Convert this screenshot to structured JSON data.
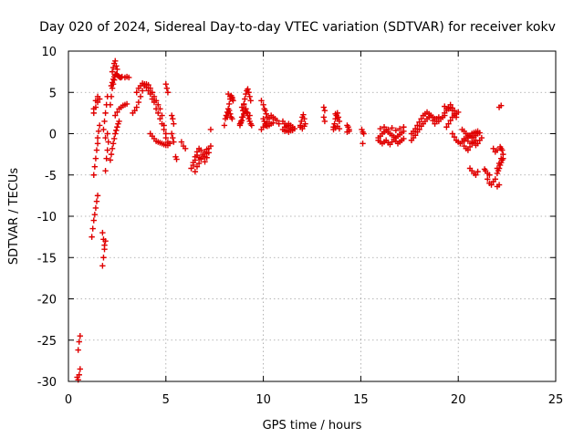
{
  "chart_data": {
    "type": "scatter",
    "title": "Day 020 of 2024, Sidereal Day-to-day VTEC variation (SDTVAR) for receiver kokv",
    "xlabel": "GPS time / hours",
    "ylabel": "SDTVAR / TECUs",
    "xlim": [
      0,
      25
    ],
    "ylim": [
      -30,
      10
    ],
    "xticks": [
      0,
      5,
      10,
      15,
      20,
      25
    ],
    "yticks": [
      10,
      5,
      0,
      -5,
      -10,
      -15,
      -20,
      -25,
      -30
    ],
    "grid": true,
    "marker": "+",
    "color": "#e00000",
    "series": [
      {
        "name": "SDTVAR",
        "x": [
          0.45,
          0.5,
          0.55,
          0.6,
          0.5,
          0.55,
          0.6,
          1.2,
          1.25,
          1.3,
          1.35,
          1.4,
          1.45,
          1.5,
          1.3,
          1.35,
          1.4,
          1.45,
          1.5,
          1.5,
          1.55,
          1.6,
          1.3,
          1.4,
          1.5,
          1.3,
          1.4,
          1.5,
          1.6,
          1.75,
          1.8,
          1.85,
          1.9,
          1.75,
          1.8,
          1.85,
          1.9,
          1.95,
          2.0,
          2.05,
          1.8,
          1.85,
          1.9,
          1.95,
          2.0,
          1.9,
          2.0,
          2.15,
          2.2,
          2.25,
          2.3,
          2.35,
          2.4,
          2.45,
          2.5,
          2.55,
          2.6,
          2.15,
          2.2,
          2.25,
          2.3,
          2.35,
          2.2,
          2.25,
          2.3,
          2.35,
          2.4,
          2.45,
          2.5,
          2.55,
          2.6,
          2.65,
          2.7,
          2.75,
          2.25,
          2.3,
          2.35,
          2.4,
          2.45,
          2.5,
          2.4,
          2.5,
          2.6,
          2.7,
          2.8,
          2.9,
          3.0,
          2.9,
          3.0,
          3.1,
          3.3,
          3.4,
          3.5,
          3.6,
          3.7,
          3.8,
          3.9,
          4.0,
          4.1,
          4.2,
          4.3,
          4.4,
          4.5,
          4.6,
          4.7,
          4.8,
          4.9,
          5.0,
          3.5,
          3.6,
          3.7,
          3.8,
          3.9,
          4.0,
          4.1,
          4.2,
          4.3,
          4.4,
          4.5,
          4.6,
          4.7,
          4.8,
          4.9,
          5.0,
          5.1,
          4.2,
          4.3,
          4.4,
          4.5,
          4.6,
          4.7,
          4.8,
          4.9,
          5.0,
          5.1,
          5.2,
          5.0,
          5.05,
          5.1,
          5.3,
          5.35,
          5.4,
          5.3,
          5.35,
          5.4,
          5.5,
          5.55,
          5.8,
          5.9,
          6.0,
          6.3,
          6.4,
          6.5,
          6.6,
          6.7,
          6.8,
          6.9,
          7.0,
          7.1,
          7.2,
          7.3,
          6.4,
          6.5,
          6.6,
          6.7,
          6.8,
          6.9,
          7.0,
          7.1,
          7.2,
          6.5,
          6.6,
          6.7,
          6.8,
          7.0,
          7.1,
          7.3,
          8.0,
          8.05,
          8.1,
          8.15,
          8.2,
          8.25,
          8.3,
          8.35,
          8.4,
          8.45,
          8.1,
          8.15,
          8.2,
          8.25,
          8.3,
          8.35,
          8.4,
          8.2,
          8.3,
          8.4,
          8.8,
          8.85,
          8.9,
          8.95,
          9.0,
          9.05,
          9.1,
          9.15,
          9.2,
          9.25,
          9.3,
          9.35,
          8.8,
          8.85,
          8.9,
          8.95,
          9.0,
          9.05,
          9.1,
          9.15,
          9.2,
          9.25,
          9.3,
          9.35,
          9.4,
          8.9,
          9.0,
          9.1,
          9.2,
          9.3,
          9.9,
          10.0,
          10.05,
          10.1,
          10.15,
          10.2,
          10.0,
          10.05,
          10.1,
          10.15,
          10.2,
          10.3,
          10.4,
          10.5,
          9.9,
          10.0,
          10.1,
          10.2,
          10.3,
          10.4,
          10.5,
          10.6,
          10.7,
          10.8,
          11.0,
          11.1,
          11.2,
          11.3,
          11.4,
          11.5,
          11.6,
          11.1,
          11.2,
          11.3,
          11.4,
          11.5,
          11.0,
          11.1,
          11.2,
          11.3,
          11.4,
          11.5,
          11.9,
          11.95,
          12.0,
          12.05,
          12.1,
          12.15,
          11.9,
          12.0,
          12.1,
          13.1,
          13.15,
          13.1,
          13.15,
          13.6,
          13.65,
          13.7,
          13.75,
          13.8,
          13.85,
          13.9,
          13.6,
          13.7,
          13.8,
          13.9,
          13.7,
          13.8,
          14.3,
          14.35,
          14.4,
          14.3,
          14.4,
          15.05,
          15.1,
          15.15,
          15.1,
          15.9,
          16.0,
          16.1,
          16.2,
          16.3,
          16.4,
          16.5,
          16.6,
          16.7,
          16.8,
          16.9,
          17.0,
          17.1,
          17.2,
          15.9,
          16.0,
          16.1,
          16.2,
          16.3,
          16.4,
          16.5,
          16.6,
          16.7,
          16.8,
          16.9,
          17.0,
          17.1,
          17.2,
          16.0,
          16.2,
          16.4,
          16.6,
          16.8,
          17.0,
          17.2,
          17.6,
          17.7,
          17.8,
          17.9,
          18.0,
          18.1,
          18.2,
          18.3,
          18.4,
          18.5,
          18.6,
          18.7,
          18.8,
          18.9,
          19.0,
          19.1,
          19.2,
          19.3,
          17.6,
          17.7,
          17.8,
          17.9,
          18.0,
          18.1,
          18.2,
          18.3,
          18.4,
          18.5,
          18.6,
          18.7,
          18.8,
          18.9,
          19.0,
          19.3,
          19.4,
          19.5,
          19.6,
          19.7,
          19.8,
          19.9,
          19.4,
          19.5,
          19.6,
          19.7,
          19.8,
          19.9,
          20.0,
          19.3,
          19.4,
          19.5,
          19.6,
          19.7,
          19.8,
          19.7,
          19.8,
          19.9,
          20.0,
          20.1,
          20.2,
          20.3,
          20.4,
          20.5,
          20.6,
          20.7,
          20.8,
          20.9,
          21.0,
          20.2,
          20.3,
          20.4,
          20.5,
          20.6,
          20.7,
          20.8,
          20.9,
          21.0,
          21.1,
          20.3,
          20.5,
          20.7,
          20.9,
          20.3,
          20.4,
          20.5,
          20.6,
          20.7,
          20.8,
          20.9,
          21.0,
          21.1,
          21.2,
          20.6,
          20.7,
          20.8,
          20.9,
          21.0,
          21.35,
          21.4,
          21.5,
          21.6,
          21.5,
          21.6,
          21.7,
          21.8,
          21.9,
          22.0,
          22.1,
          22.0,
          22.05,
          22.1,
          22.15,
          22.2,
          22.25,
          22.3,
          22.0,
          22.1,
          22.2,
          22.3,
          22.15,
          22.2,
          22.25,
          21.8,
          21.9,
          22.0,
          22.1,
          22.2
        ],
        "y": [
          -29.5,
          -29.8,
          -29.2,
          -28.5,
          -26.2,
          -25.2,
          -24.5,
          -12.5,
          -11.5,
          -10.5,
          -9.8,
          -9.0,
          -8.2,
          -7.5,
          -5.0,
          -4.0,
          -3.0,
          -2.0,
          -1.2,
          -0.5,
          0.3,
          1.0,
          3.0,
          4.0,
          4.5,
          2.5,
          3.2,
          3.8,
          4.2,
          -16.0,
          -15.0,
          -14.0,
          -13.0,
          -12.0,
          -12.8,
          -13.5,
          -4.5,
          -3.0,
          -2.0,
          -1.0,
          0.5,
          1.5,
          2.5,
          3.5,
          4.5,
          -0.5,
          0.0,
          -3.2,
          -2.5,
          -1.8,
          -1.2,
          -0.6,
          0.0,
          0.4,
          0.8,
          1.2,
          1.5,
          3.5,
          4.5,
          5.5,
          6.0,
          6.5,
          5.8,
          6.2,
          6.6,
          6.9,
          7.1,
          7.2,
          7.1,
          7.0,
          6.9,
          6.8,
          6.8,
          6.9,
          7.5,
          8.0,
          8.5,
          8.8,
          8.2,
          7.8,
          2.2,
          2.6,
          3.0,
          3.2,
          3.4,
          3.5,
          3.6,
          6.8,
          6.9,
          6.8,
          2.5,
          2.8,
          3.2,
          3.8,
          4.5,
          5.2,
          5.8,
          6.0,
          5.9,
          5.5,
          5.0,
          4.5,
          4.0,
          3.5,
          3.0,
          2.2,
          1.0,
          0.0,
          5.0,
          5.5,
          5.8,
          6.1,
          6.0,
          5.6,
          5.2,
          4.8,
          4.2,
          3.8,
          3.0,
          2.5,
          1.8,
          1.2,
          0.5,
          -0.5,
          -1.0,
          0.0,
          -0.3,
          -0.6,
          -0.9,
          -1.0,
          -1.1,
          -1.2,
          -1.3,
          -1.4,
          -1.4,
          -1.2,
          6.0,
          5.5,
          5.0,
          2.2,
          1.8,
          1.2,
          0.0,
          -0.5,
          -1.0,
          -2.8,
          -3.1,
          -1.0,
          -1.5,
          -1.8,
          -4.2,
          -3.5,
          -2.8,
          -2.2,
          -1.8,
          -2.0,
          -2.5,
          -2.8,
          -2.4,
          -1.8,
          -1.5,
          -3.8,
          -3.2,
          -2.6,
          -2.9,
          -3.1,
          -2.7,
          -2.2,
          -1.9,
          -2.3,
          -4.6,
          -4.0,
          -3.6,
          -3.0,
          -3.4,
          -2.9,
          0.5,
          1.0,
          1.8,
          2.2,
          2.6,
          3.0,
          3.6,
          4.2,
          4.6,
          4.4,
          4.0,
          2.2,
          2.0,
          2.5,
          2.8,
          2.4,
          2.0,
          1.8,
          4.8,
          4.5,
          4.2,
          1.2,
          1.5,
          2.0,
          2.8,
          3.5,
          4.2,
          4.8,
          5.2,
          5.4,
          5.0,
          4.5,
          4.0,
          1.0,
          1.3,
          1.6,
          2.0,
          2.4,
          2.8,
          3.0,
          2.6,
          2.2,
          1.8,
          1.5,
          1.2,
          1.0,
          3.2,
          3.6,
          3.0,
          2.5,
          2.2,
          4.0,
          3.5,
          3.0,
          2.8,
          2.4,
          2.0,
          1.8,
          1.5,
          1.2,
          1.0,
          0.9,
          1.0,
          1.2,
          1.3,
          0.5,
          0.8,
          1.0,
          1.4,
          1.8,
          2.2,
          2.0,
          1.8,
          1.6,
          1.2,
          0.5,
          0.8,
          1.0,
          1.2,
          1.0,
          0.8,
          0.6,
          0.3,
          0.4,
          0.2,
          0.4,
          0.6,
          1.5,
          1.2,
          0.9,
          0.7,
          0.5,
          0.4,
          1.0,
          1.5,
          2.0,
          2.3,
          1.8,
          1.2,
          0.8,
          0.6,
          0.9,
          3.2,
          2.8,
          2.0,
          1.5,
          0.8,
          1.2,
          1.8,
          2.2,
          2.5,
          2.0,
          1.5,
          0.5,
          0.7,
          0.9,
          0.6,
          2.4,
          1.8,
          1.0,
          0.8,
          0.5,
          0.2,
          0.3,
          0.5,
          0.2,
          0.0,
          -1.2,
          -0.5,
          -0.3,
          0.0,
          0.2,
          0.4,
          0.2,
          0.0,
          -0.2,
          -0.4,
          -0.5,
          -0.3,
          -0.1,
          0.1,
          0.3,
          -0.8,
          -1.0,
          -1.2,
          -1.0,
          -0.8,
          -1.1,
          -1.3,
          -1.0,
          -0.7,
          -0.9,
          -1.2,
          -1.0,
          -0.8,
          -0.6,
          0.6,
          0.8,
          0.5,
          0.7,
          0.4,
          0.6,
          0.8,
          -0.8,
          -0.5,
          -0.2,
          0.2,
          0.5,
          0.9,
          1.2,
          1.5,
          1.8,
          2.0,
          2.2,
          2.0,
          1.8,
          1.5,
          1.5,
          1.8,
          2.0,
          2.2,
          0.0,
          0.3,
          0.6,
          1.0,
          1.4,
          1.8,
          2.2,
          2.4,
          2.6,
          2.4,
          2.2,
          1.6,
          1.2,
          1.8,
          2.0,
          2.5,
          2.8,
          3.0,
          3.2,
          2.8,
          2.4,
          2.0,
          0.8,
          1.2,
          1.6,
          2.0,
          2.2,
          2.4,
          2.6,
          3.3,
          3.0,
          3.2,
          3.5,
          3.1,
          2.8,
          0.0,
          -0.4,
          -0.8,
          -1.0,
          -1.2,
          -1.0,
          -0.8,
          -0.6,
          -0.4,
          -0.2,
          0.0,
          0.1,
          0.2,
          0.3,
          0.5,
          0.3,
          0.0,
          -0.2,
          -0.3,
          -0.5,
          -0.4,
          -0.2,
          0.0,
          0.1,
          -0.6,
          -0.9,
          -1.1,
          -0.8,
          -1.5,
          -1.8,
          -2.0,
          -1.6,
          -1.2,
          -1.0,
          -1.4,
          -1.2,
          -0.8,
          -0.5,
          -4.2,
          -4.5,
          -4.8,
          -5.0,
          -4.6,
          -4.3,
          -4.5,
          -4.8,
          -5.0,
          -5.5,
          -6.0,
          -6.2,
          -5.8,
          -5.5,
          -6.4,
          -6.2,
          -4.8,
          -4.5,
          -4.2,
          -3.8,
          -3.5,
          -3.2,
          -3.0,
          -4.2,
          -3.6,
          -3.0,
          -2.5,
          -1.6,
          -1.8,
          -2.0,
          -1.8,
          -2.2,
          -2.0,
          3.2,
          3.4
        ]
      }
    ]
  }
}
